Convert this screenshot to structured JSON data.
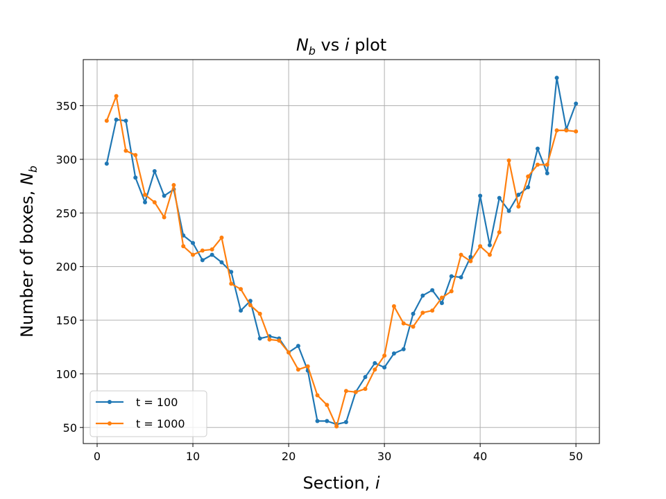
{
  "chart_data": {
    "type": "line",
    "title": "N_b vs i plot",
    "title_parts": {
      "var": "N",
      "sub": "b",
      "mid": " vs ",
      "var2": "i",
      "tail": " plot"
    },
    "xlabel": "Section, i",
    "xlabel_parts": {
      "text": "Section, ",
      "var": "i"
    },
    "ylabel": "Number of boxes, N_b",
    "ylabel_parts": {
      "text": "Number of boxes, ",
      "var": "N",
      "sub": "b"
    },
    "xlim": [
      -1.45,
      52.45
    ],
    "ylim": [
      35,
      393
    ],
    "xticks": [
      0,
      10,
      20,
      30,
      40,
      50
    ],
    "yticks": [
      50,
      100,
      150,
      200,
      250,
      300,
      350
    ],
    "grid": true,
    "legend_position": "lower-left",
    "x": [
      1,
      2,
      3,
      4,
      5,
      6,
      7,
      8,
      9,
      10,
      11,
      12,
      13,
      14,
      15,
      16,
      17,
      18,
      19,
      20,
      21,
      22,
      23,
      24,
      25,
      26,
      27,
      28,
      29,
      30,
      31,
      32,
      33,
      34,
      35,
      36,
      37,
      38,
      39,
      40,
      41,
      42,
      43,
      44,
      45,
      46,
      47,
      48,
      49,
      50
    ],
    "series": [
      {
        "name": "t = 100",
        "color": "#1f77b4",
        "values": [
          296,
          337,
          336,
          283,
          260,
          289,
          266,
          272,
          229,
          222,
          206,
          211,
          204,
          195,
          159,
          168,
          133,
          135,
          133,
          120,
          126,
          103,
          56,
          56,
          53,
          55,
          83,
          97,
          110,
          106,
          119,
          123,
          156,
          173,
          178,
          166,
          191,
          190,
          209,
          266,
          220,
          264,
          252,
          267,
          274,
          310,
          287,
          376,
          328,
          352
        ]
      },
      {
        "name": "t = 1000",
        "color": "#ff7f0e",
        "values": [
          336,
          359,
          308,
          304,
          267,
          260,
          246,
          276,
          219,
          211,
          215,
          216,
          227,
          184,
          179,
          164,
          156,
          132,
          131,
          120,
          104,
          107,
          80,
          71,
          51,
          84,
          83,
          86,
          104,
          117,
          163,
          147,
          144,
          157,
          159,
          171,
          177,
          211,
          205,
          219,
          211,
          232,
          299,
          256,
          284,
          295,
          295,
          327,
          327,
          326
        ]
      }
    ]
  }
}
